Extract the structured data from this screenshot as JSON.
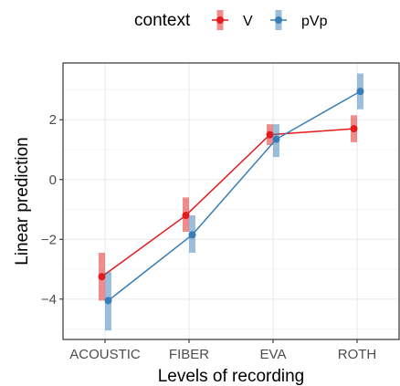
{
  "chart_data": {
    "type": "line",
    "categories": [
      "ACOUSTIC",
      "FIBER",
      "EVA",
      "ROTH"
    ],
    "xlabel": "Levels of recording",
    "ylabel": "Linear prediction",
    "ylim": [
      -5.35,
      3.9
    ],
    "yticks": [
      -4,
      -2,
      0,
      2
    ],
    "ytick_labels": [
      "−4",
      "−2",
      "0",
      "2"
    ],
    "grid": true,
    "legend": {
      "title": "context",
      "position": "top"
    },
    "series": [
      {
        "name": "V",
        "color": "#e41a1c",
        "values": [
          -3.25,
          -1.2,
          1.5,
          1.7
        ],
        "lower": [
          -4.05,
          -1.75,
          1.15,
          1.25
        ],
        "upper": [
          -2.45,
          -0.6,
          1.85,
          2.15
        ]
      },
      {
        "name": "pVp",
        "color": "#377eb8",
        "values": [
          -4.05,
          -1.85,
          1.35,
          2.95
        ],
        "lower": [
          -5.05,
          -2.45,
          0.75,
          2.35
        ],
        "upper": [
          -3.1,
          -1.2,
          1.85,
          3.55
        ]
      }
    ]
  }
}
